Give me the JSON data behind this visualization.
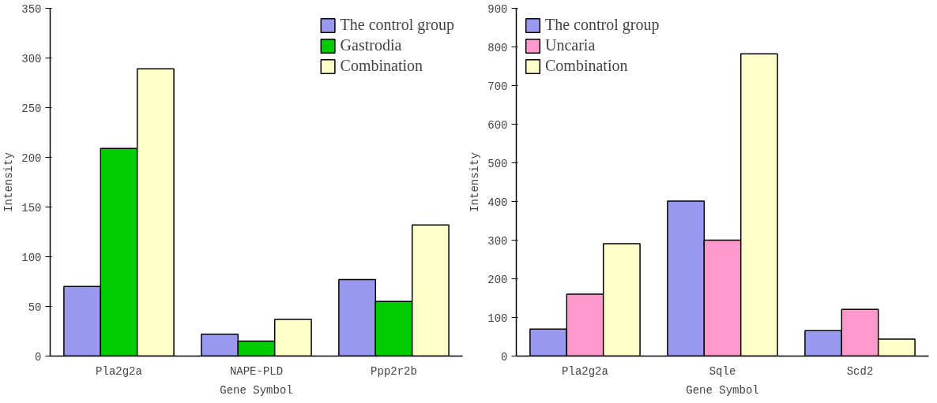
{
  "chart_data": [
    {
      "type": "bar",
      "xlabel": "Gene Symbol",
      "ylabel": "Intensity",
      "categories": [
        "Pla2g2a",
        "NAPE-PLD",
        "Ppp2r2b"
      ],
      "series": [
        {
          "name": "The control group",
          "color": "#9999ee",
          "values": [
            70,
            22,
            77
          ]
        },
        {
          "name": "Gastrodia",
          "color": "#00cc00",
          "values": [
            209,
            15,
            55
          ]
        },
        {
          "name": "Combination",
          "color": "#ffffcc",
          "values": [
            289,
            37,
            132
          ]
        }
      ],
      "ylim": [
        0,
        350
      ],
      "yticks": [
        0,
        50,
        100,
        150,
        200,
        250,
        300,
        350
      ],
      "grid": false,
      "legend": "top right"
    },
    {
      "type": "bar",
      "xlabel": "Gene Symbol",
      "ylabel": "Intensity",
      "categories": [
        "Pla2g2a",
        "Sqle",
        "Scd2"
      ],
      "series": [
        {
          "name": "The control group",
          "color": "#9999ee",
          "values": [
            70,
            401,
            66
          ]
        },
        {
          "name": "Uncaria",
          "color": "#ff99cc",
          "values": [
            160,
            300,
            121
          ]
        },
        {
          "name": "Combination",
          "color": "#ffffcc",
          "values": [
            291,
            782,
            44
          ]
        }
      ],
      "ylim": [
        0,
        900
      ],
      "yticks": [
        0,
        100,
        200,
        300,
        400,
        500,
        600,
        700,
        800,
        900
      ],
      "grid": false,
      "legend": "top left"
    }
  ]
}
